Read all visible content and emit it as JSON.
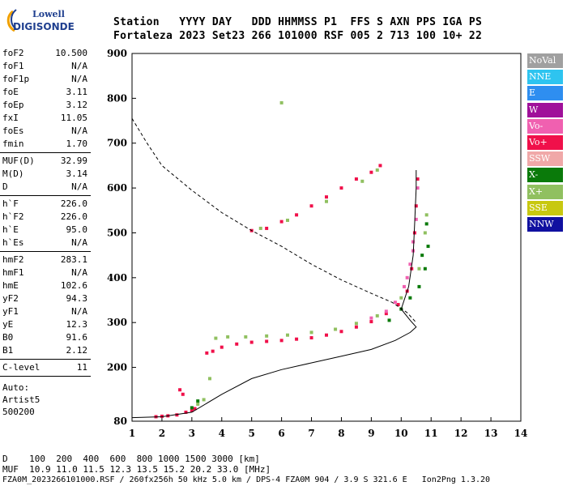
{
  "logo": {
    "line1": "Lowell",
    "line2": "DIGISONDE"
  },
  "header": {
    "line1": "Station   YYYY DAY   DDD HHMMSS P1  FFS S AXN PPS IGA PS",
    "line2": "Fortaleza 2023 Set23 266 101000 RSF 005 2 713 100 10+ 22"
  },
  "params_group1": [
    {
      "k": "foF2",
      "v": "10.500"
    },
    {
      "k": "foF1",
      "v": "N/A"
    },
    {
      "k": "foF1p",
      "v": "N/A"
    },
    {
      "k": "foE",
      "v": "3.11"
    },
    {
      "k": "foEp",
      "v": "3.12"
    },
    {
      "k": "fxI",
      "v": "11.05"
    },
    {
      "k": "foEs",
      "v": "N/A"
    },
    {
      "k": "fmin",
      "v": "1.70"
    }
  ],
  "params_group2": [
    {
      "k": "MUF(D)",
      "v": "32.99"
    },
    {
      "k": "M(D)",
      "v": "3.14"
    },
    {
      "k": "D",
      "v": "N/A"
    }
  ],
  "params_group3": [
    {
      "k": "h`F",
      "v": "226.0"
    },
    {
      "k": "h`F2",
      "v": "226.0"
    },
    {
      "k": "h`E",
      "v": "95.0"
    },
    {
      "k": "h`Es",
      "v": "N/A"
    }
  ],
  "params_group4": [
    {
      "k": "hmF2",
      "v": "283.1"
    },
    {
      "k": "hmF1",
      "v": "N/A"
    },
    {
      "k": "hmE",
      "v": "102.6"
    },
    {
      "k": "yF2",
      "v": "94.3"
    },
    {
      "k": "yF1",
      "v": "N/A"
    },
    {
      "k": "yE",
      "v": "12.3"
    },
    {
      "k": "B0",
      "v": "91.6"
    },
    {
      "k": "B1",
      "v": "2.12"
    }
  ],
  "params_group5": [
    {
      "k": "C-level",
      "v": "11"
    }
  ],
  "auto": {
    "l1": "Auto:",
    "l2": "Artist5",
    "l3": "500200"
  },
  "legend": [
    {
      "label": "NoVal",
      "color": "#a0a0a0"
    },
    {
      "label": "NNE",
      "color": "#2ec4f0"
    },
    {
      "label": "E",
      "color": "#2e8ef0"
    },
    {
      "label": "W",
      "color": "#a0109a"
    },
    {
      "label": "Vo-",
      "color": "#f060b0"
    },
    {
      "label": "Vo+",
      "color": "#f0104a"
    },
    {
      "label": "SSW",
      "color": "#f0a8a8"
    },
    {
      "label": "X-",
      "color": "#0a7a0a"
    },
    {
      "label": "X+",
      "color": "#90c060"
    },
    {
      "label": "SSE",
      "color": "#c8c810"
    },
    {
      "label": "NNW",
      "color": "#1010a0"
    }
  ],
  "footer": {
    "l1": "D    100  200  400  600  800 1000 1500 3000 [km]",
    "l2": "MUF  10.9 11.0 11.5 12.3 13.5 15.2 20.2 33.0 [MHz]",
    "l3": "FZA0M_2023266101000.RSF / 260fx256h 50 kHz 5.0 km / DPS-4 FZA0M 904 / 3.9 S 321.6 E   Ion2Png 1.3.20"
  },
  "chart_data": {
    "type": "scatter",
    "xlabel": "",
    "ylabel": "",
    "xlim": [
      1,
      14
    ],
    "ylim": [
      80,
      900
    ],
    "xticks": [
      1,
      2,
      3,
      4,
      5,
      6,
      7,
      8,
      9,
      10,
      11,
      12,
      13,
      14
    ],
    "yticks": [
      80,
      200,
      300,
      400,
      500,
      600,
      700,
      800,
      900
    ],
    "traces": [
      {
        "name": "Vo+",
        "color": "#f0104a",
        "points": [
          [
            1.8,
            90
          ],
          [
            2.0,
            91
          ],
          [
            2.2,
            92
          ],
          [
            2.5,
            94
          ],
          [
            2.8,
            100
          ],
          [
            3.0,
            104
          ],
          [
            3.1,
            108
          ],
          [
            3.5,
            232
          ],
          [
            3.7,
            236
          ],
          [
            4.0,
            245
          ],
          [
            4.5,
            252
          ],
          [
            5.0,
            256
          ],
          [
            5.5,
            258
          ],
          [
            6.0,
            260
          ],
          [
            6.5,
            263
          ],
          [
            7.0,
            266
          ],
          [
            7.5,
            272
          ],
          [
            8.0,
            280
          ],
          [
            8.5,
            290
          ],
          [
            9.0,
            302
          ],
          [
            9.5,
            320
          ],
          [
            9.9,
            340
          ],
          [
            10.2,
            370
          ],
          [
            10.35,
            420
          ],
          [
            10.45,
            500
          ],
          [
            10.5,
            560
          ],
          [
            10.55,
            620
          ],
          [
            5.0,
            505
          ],
          [
            5.5,
            510
          ],
          [
            6.0,
            525
          ],
          [
            6.5,
            540
          ],
          [
            7.0,
            560
          ],
          [
            7.5,
            580
          ],
          [
            8.0,
            600
          ],
          [
            8.5,
            620
          ],
          [
            9.0,
            635
          ],
          [
            9.3,
            650
          ],
          [
            2.6,
            150
          ],
          [
            2.7,
            140
          ]
        ]
      },
      {
        "name": "Vo-",
        "color": "#f060b0",
        "points": [
          [
            9.0,
            310
          ],
          [
            9.5,
            325
          ],
          [
            9.8,
            345
          ],
          [
            10.1,
            380
          ],
          [
            10.3,
            430
          ],
          [
            10.4,
            480
          ],
          [
            10.5,
            530
          ],
          [
            10.55,
            600
          ],
          [
            10.4,
            460
          ],
          [
            10.2,
            400
          ]
        ]
      },
      {
        "name": "X-",
        "color": "#0a7a0a",
        "points": [
          [
            3.0,
            110
          ],
          [
            3.2,
            125
          ],
          [
            9.6,
            305
          ],
          [
            10.0,
            330
          ],
          [
            10.3,
            355
          ],
          [
            10.6,
            380
          ],
          [
            10.8,
            420
          ],
          [
            10.9,
            470
          ],
          [
            10.85,
            520
          ],
          [
            10.7,
            450
          ]
        ]
      },
      {
        "name": "X+",
        "color": "#90c060",
        "points": [
          [
            3.2,
            118
          ],
          [
            3.4,
            128
          ],
          [
            3.8,
            265
          ],
          [
            4.2,
            268
          ],
          [
            4.8,
            268
          ],
          [
            5.5,
            270
          ],
          [
            6.2,
            272
          ],
          [
            7.0,
            278
          ],
          [
            7.8,
            285
          ],
          [
            8.5,
            298
          ],
          [
            9.2,
            315
          ],
          [
            10.0,
            355
          ],
          [
            10.6,
            420
          ],
          [
            10.8,
            500
          ],
          [
            10.85,
            540
          ],
          [
            5.3,
            510
          ],
          [
            6.2,
            528
          ],
          [
            7.5,
            570
          ],
          [
            8.7,
            615
          ],
          [
            9.2,
            640
          ],
          [
            3.6,
            175
          ],
          [
            6.0,
            790
          ]
        ]
      }
    ],
    "profile_solid": [
      [
        1.0,
        88
      ],
      [
        2.0,
        90
      ],
      [
        3.0,
        100
      ],
      [
        4.0,
        140
      ],
      [
        5.0,
        175
      ],
      [
        6.0,
        195
      ],
      [
        7.0,
        210
      ],
      [
        8.0,
        225
      ],
      [
        9.0,
        240
      ],
      [
        9.8,
        260
      ],
      [
        10.3,
        278
      ],
      [
        10.5,
        290
      ],
      [
        10.3,
        305
      ],
      [
        10.0,
        330
      ],
      [
        10.25,
        380
      ],
      [
        10.4,
        450
      ],
      [
        10.45,
        520
      ],
      [
        10.5,
        600
      ],
      [
        10.5,
        640
      ]
    ],
    "profile_dashed": [
      [
        1.0,
        755
      ],
      [
        1.5,
        700
      ],
      [
        2.0,
        650
      ],
      [
        3.0,
        595
      ],
      [
        4.0,
        545
      ],
      [
        5.0,
        505
      ],
      [
        6.0,
        470
      ],
      [
        7.0,
        430
      ],
      [
        8.0,
        395
      ],
      [
        9.0,
        365
      ],
      [
        9.7,
        345
      ],
      [
        10.2,
        322
      ],
      [
        10.5,
        300
      ]
    ]
  }
}
